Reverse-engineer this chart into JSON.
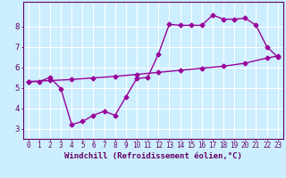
{
  "title": "",
  "xlabel": "Windchill (Refroidissement éolien,°C)",
  "ylabel": "",
  "bg_color": "#cceeff",
  "grid_color": "#ffffff",
  "line_color": "#990099",
  "x_ticks": [
    0,
    1,
    2,
    3,
    4,
    5,
    6,
    7,
    8,
    9,
    10,
    11,
    12,
    13,
    14,
    15,
    16,
    17,
    18,
    19,
    20,
    21,
    22,
    23
  ],
  "y_ticks": [
    3,
    4,
    5,
    6,
    7,
    8
  ],
  "ylim": [
    2.5,
    9.2
  ],
  "xlim": [
    -0.5,
    23.5
  ],
  "line1_x": [
    0,
    1,
    2,
    3,
    4,
    5,
    6,
    7,
    8,
    9,
    10,
    11,
    12,
    13,
    14,
    15,
    16,
    17,
    18,
    19,
    20,
    21,
    22,
    23
  ],
  "line1_y": [
    5.3,
    5.3,
    5.5,
    4.95,
    3.2,
    3.35,
    3.65,
    3.85,
    3.65,
    4.55,
    5.45,
    5.5,
    6.65,
    8.1,
    8.05,
    8.05,
    8.05,
    8.55,
    8.35,
    8.35,
    8.4,
    8.05,
    7.0,
    6.5
  ],
  "line2_x": [
    0,
    2,
    4,
    6,
    8,
    10,
    12,
    14,
    16,
    18,
    20,
    22,
    23
  ],
  "line2_y": [
    5.3,
    5.35,
    5.4,
    5.48,
    5.55,
    5.65,
    5.75,
    5.85,
    5.95,
    6.05,
    6.2,
    6.45,
    6.55
  ],
  "marker": "D",
  "markersize": 2.5,
  "linewidth": 1.0,
  "xlabel_fontsize": 6.5,
  "tick_fontsize": 5.5,
  "axis_color": "#660066"
}
